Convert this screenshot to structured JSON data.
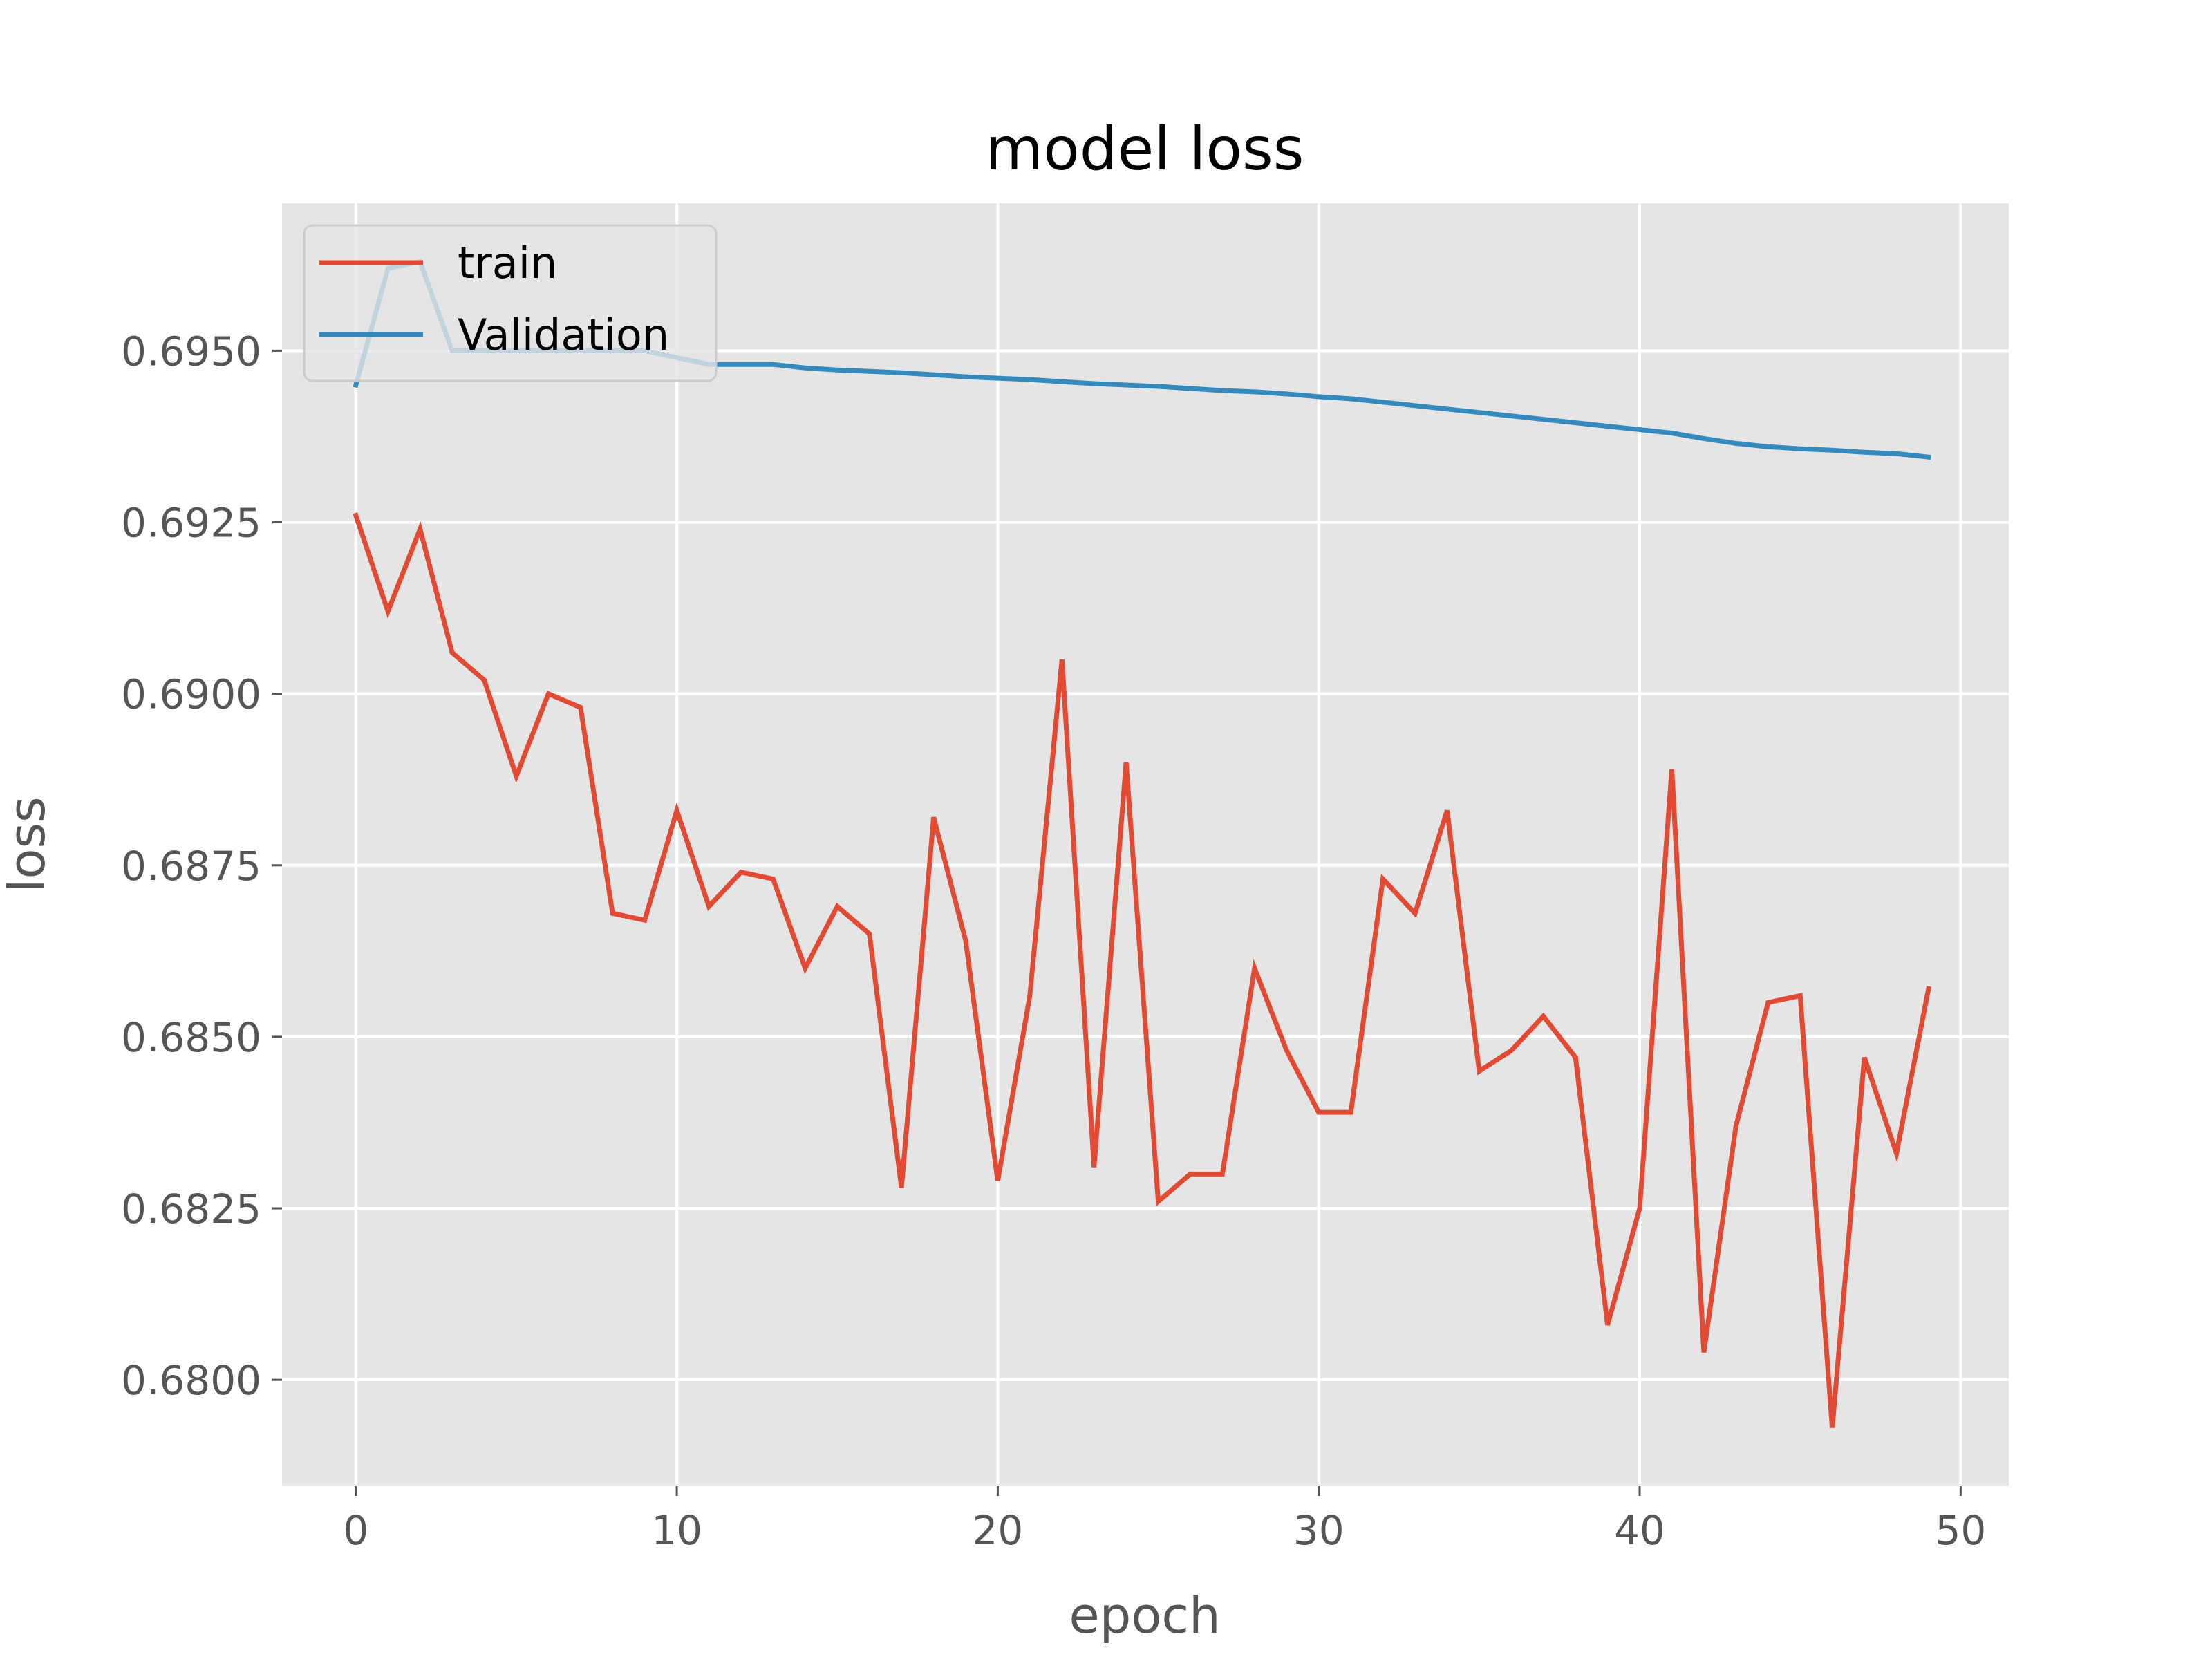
{
  "chart_data": {
    "type": "line",
    "title": "model loss",
    "xlabel": "epoch",
    "ylabel": "loss",
    "xlim": [
      -2.3,
      51.5
    ],
    "ylim": [
      0.67845,
      0.69715
    ],
    "xticks": [
      0,
      10,
      20,
      30,
      40,
      50
    ],
    "xtick_labels": [
      "0",
      "10",
      "20",
      "30",
      "40",
      "50"
    ],
    "yticks": [
      0.68,
      0.6825,
      0.685,
      0.6875,
      0.69,
      0.6925,
      0.695
    ],
    "ytick_labels": [
      "0.6800",
      "0.6825",
      "0.6850",
      "0.6875",
      "0.6900",
      "0.6925",
      "0.6950"
    ],
    "grid": true,
    "legend_position": "upper-left",
    "x": [
      0,
      1,
      2,
      3,
      4,
      5,
      6,
      7,
      8,
      9,
      10,
      11,
      12,
      13,
      14,
      15,
      16,
      17,
      18,
      19,
      20,
      21,
      22,
      23,
      24,
      25,
      26,
      27,
      28,
      29,
      30,
      31,
      32,
      33,
      34,
      35,
      36,
      37,
      38,
      39,
      40,
      41,
      42,
      43,
      44,
      45,
      46,
      47,
      48,
      49
    ],
    "series": [
      {
        "name": "train",
        "color": "#E24A33",
        "values": [
          0.6926,
          0.6912,
          0.6924,
          0.6906,
          0.6902,
          0.6888,
          0.69,
          0.6898,
          0.6868,
          0.6867,
          0.6883,
          0.6869,
          0.6874,
          0.6873,
          0.686,
          0.6869,
          0.6865,
          0.6828,
          0.6882,
          0.6864,
          0.6829,
          0.6856,
          0.6905,
          0.6831,
          0.689,
          0.6826,
          0.683,
          0.683,
          0.686,
          0.6848,
          0.6839,
          0.6839,
          0.6873,
          0.6868,
          0.6883,
          0.6845,
          0.6848,
          0.6853,
          0.6847,
          0.6808,
          0.6825,
          0.6889,
          0.6804,
          0.6837,
          0.6855,
          0.6856,
          0.6793,
          0.6847,
          0.6833,
          0.6857
        ]
      },
      {
        "name": "Validation",
        "color": "#348ABD",
        "values": [
          0.6945,
          0.6962,
          0.6963,
          0.695,
          0.695,
          0.695,
          0.695,
          0.695,
          0.695,
          0.695,
          0.6949,
          0.6948,
          0.6948,
          0.6948,
          0.69475,
          0.69472,
          0.6947,
          0.69468,
          0.69465,
          0.69462,
          0.6946,
          0.69458,
          0.69455,
          0.69452,
          0.6945,
          0.69448,
          0.69445,
          0.69442,
          0.6944,
          0.69437,
          0.69433,
          0.6943,
          0.69425,
          0.6942,
          0.69415,
          0.6941,
          0.69405,
          0.694,
          0.69395,
          0.6939,
          0.69385,
          0.6938,
          0.69372,
          0.69365,
          0.6936,
          0.69357,
          0.69355,
          0.69352,
          0.6935,
          0.69345
        ]
      }
    ]
  },
  "style": {
    "plot_background": "#E5E5E5",
    "grid_color": "#FFFFFF",
    "tick_color": "#555555",
    "legend_background": "#E5E5E5",
    "legend_border": "#CCCCCC"
  }
}
